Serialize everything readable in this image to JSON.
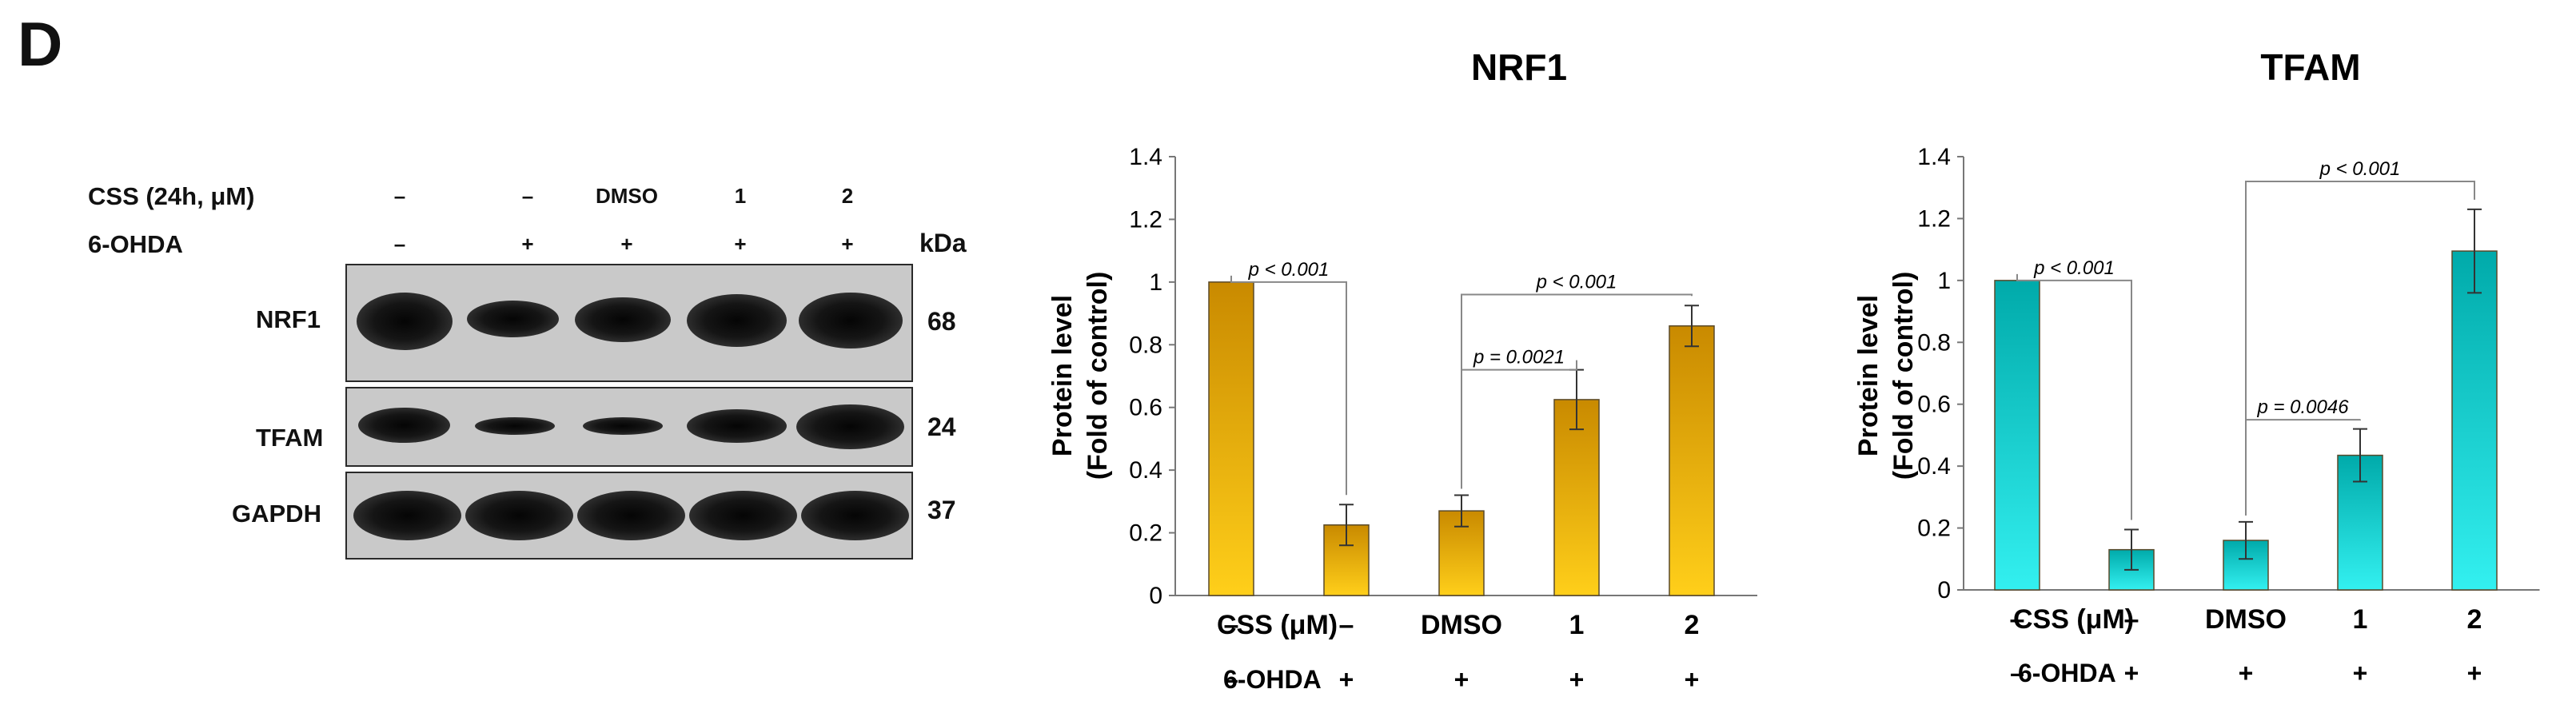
{
  "panel_letter": "D",
  "blot": {
    "rows": [
      {
        "label": "CSS (24h, μM)",
        "cells": [
          "–",
          "–",
          "DMSO",
          "1",
          "2"
        ]
      },
      {
        "label": "6-OHDA",
        "cells": [
          "–",
          "+",
          "+",
          "+",
          "+"
        ]
      }
    ],
    "kda_label": "kDa",
    "proteins": [
      {
        "name": "NRF1",
        "mw": "68",
        "intensity": [
          1.0,
          0.55,
          0.75,
          0.9,
          0.95
        ]
      },
      {
        "name": "TFAM",
        "mw": "24",
        "intensity": [
          0.8,
          0.35,
          0.3,
          0.75,
          1.0
        ]
      },
      {
        "name": "GAPDH",
        "mw": "37",
        "intensity": [
          1.0,
          1.0,
          1.0,
          1.0,
          1.0
        ]
      }
    ]
  },
  "chart_data": [
    {
      "type": "bar",
      "title": "NRF1",
      "ylabel": "Protein level (Fold of control)",
      "ylabel_lines": [
        "Protein level",
        "(Fold of control)"
      ],
      "ylim": [
        0,
        1.4
      ],
      "yticks": [
        "0",
        "0.2",
        "0.4",
        "0.6",
        "0.8",
        "1",
        "1.2",
        "1.4"
      ],
      "values": [
        1.0,
        0.225,
        0.27,
        0.625,
        0.86
      ],
      "errors": [
        0.0,
        0.065,
        0.05,
        0.095,
        0.065
      ],
      "bar_color_top": "#c98a00",
      "bar_color_bottom": "#ffcf1a",
      "row_labels": [
        "CSS (μM)",
        "6-OHDA"
      ],
      "css_row": [
        "–",
        "–",
        "DMSO",
        "1",
        "2"
      ],
      "ohda_row": [
        "–",
        "+",
        "+",
        "+",
        "+"
      ],
      "annotations": [
        {
          "text": "p < 0.001",
          "from": 0,
          "to": 1,
          "y": 1.0
        },
        {
          "text": "p = 0.0021",
          "from": 2,
          "to": 3,
          "y": 0.72
        },
        {
          "text": "p < 0.001",
          "from": 2,
          "to": 4,
          "y": 0.96
        }
      ]
    },
    {
      "type": "bar",
      "title": "TFAM",
      "ylabel": "Protein level (Fold of control)",
      "ylabel_lines": [
        "Protein level",
        "(Fold of control)"
      ],
      "ylim": [
        0,
        1.4
      ],
      "yticks": [
        "0",
        "0.2",
        "0.4",
        "0.6",
        "0.8",
        "1",
        "1.2",
        "1.4"
      ],
      "values": [
        1.0,
        0.13,
        0.16,
        0.435,
        1.095
      ],
      "errors": [
        0.0,
        0.065,
        0.06,
        0.085,
        0.135
      ],
      "bar_color_top": "#00aaaa",
      "bar_color_bottom": "#33f0f0",
      "row_labels": [
        "CSS (μM)",
        "6-OHDA"
      ],
      "css_row": [
        "–",
        "–",
        "DMSO",
        "1",
        "2"
      ],
      "ohda_row": [
        "–",
        "+",
        "+",
        "+",
        "+"
      ],
      "annotations": [
        {
          "text": "p < 0.001",
          "from": 0,
          "to": 1,
          "y": 1.0
        },
        {
          "text": "p = 0.0046",
          "from": 2,
          "to": 3,
          "y": 0.55
        },
        {
          "text": "p < 0.001",
          "from": 2,
          "to": 4,
          "y": 1.32
        }
      ]
    }
  ]
}
